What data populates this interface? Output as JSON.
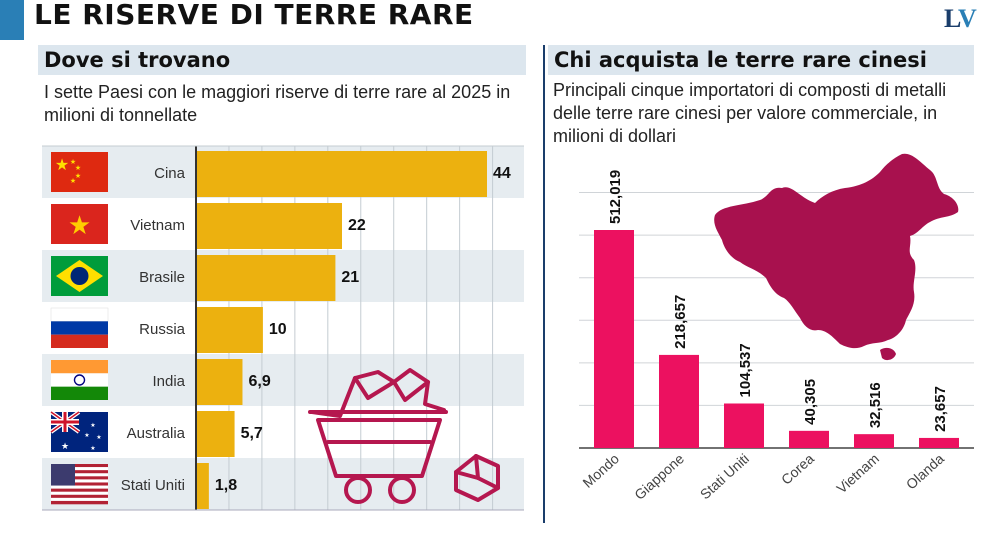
{
  "header": {
    "title": "LE RISERVE DI TERRE RARE",
    "logo_l": "L",
    "logo_v": "V",
    "accent_color": "#2a7fb6"
  },
  "left": {
    "heading": "Dove si trovano",
    "subtitle": "I sette Paesi con le maggiori riserve di terre rare al 2025 in milioni di tonnellate"
  },
  "right": {
    "heading": "Chi acquista le terre rare cinesi",
    "subtitle": "Principali cinque importatori di composti di metalli delle terre rare cinesi per valore commerciale, in milioni di dollari"
  },
  "chart_data": [
    {
      "type": "bar",
      "orientation": "horizontal",
      "categories": [
        "Cina",
        "Vietnam",
        "Brasile",
        "Russia",
        "India",
        "Australia",
        "Stati Uniti"
      ],
      "values": [
        44,
        22,
        21,
        10,
        6.9,
        5.7,
        1.8
      ],
      "value_labels": [
        "44",
        "22",
        "21",
        "10",
        "6,9",
        "5,7",
        "1,8"
      ],
      "xlim": [
        0,
        50
      ],
      "grid": true,
      "bar_color": "#ecb10f",
      "icons": [
        "flag-china-icon",
        "flag-vietnam-icon",
        "flag-brazil-icon",
        "flag-russia-icon",
        "flag-india-icon",
        "flag-australia-icon",
        "flag-usa-icon",
        "mine-cart-icon"
      ]
    },
    {
      "type": "bar",
      "orientation": "vertical",
      "categories": [
        "Mondo",
        "Giappone",
        "Stati Uniti",
        "Corea",
        "Vietnam",
        "Olanda"
      ],
      "values": [
        512.019,
        218.657,
        104.537,
        40.305,
        32.516,
        23.657
      ],
      "value_labels": [
        "512,019",
        "218,657",
        "104,537",
        "40,305",
        "32,516",
        "23,657"
      ],
      "ylim": [
        0,
        600
      ],
      "grid": true,
      "bar_color": "#ec1160",
      "map_color": "#a8114e",
      "icons": [
        "china-map-icon"
      ]
    }
  ]
}
